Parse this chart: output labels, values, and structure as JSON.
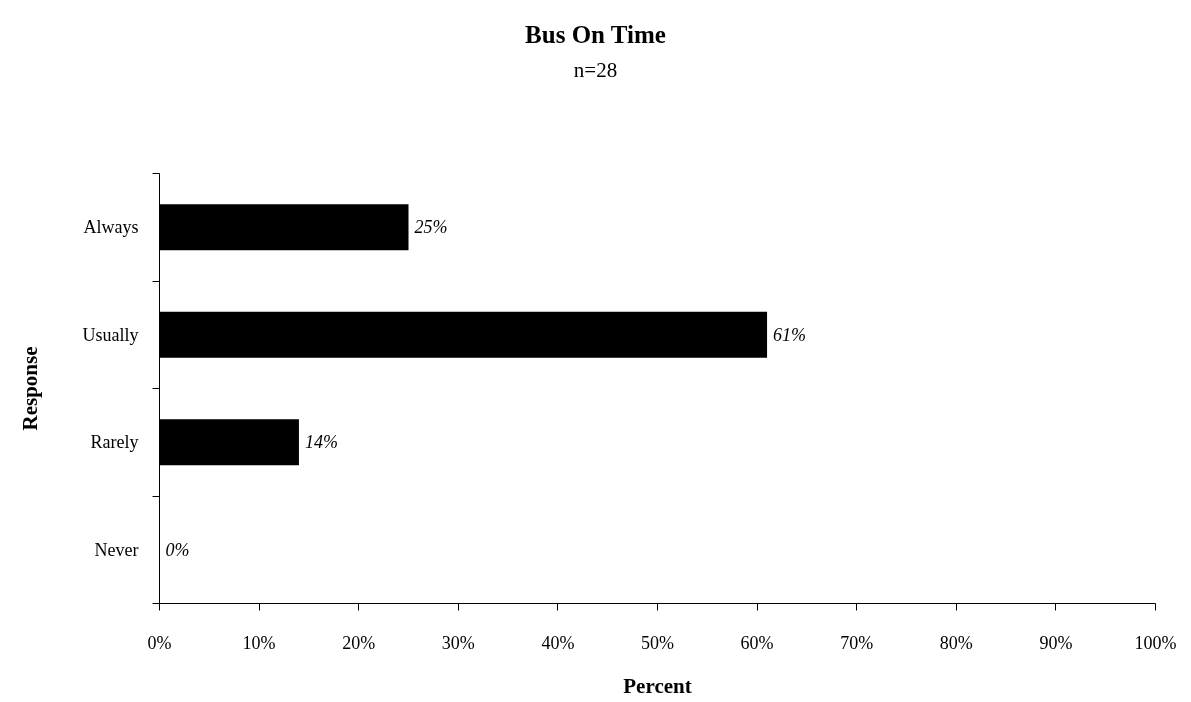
{
  "chart_data": {
    "type": "bar",
    "orientation": "horizontal",
    "title": "Bus On Time",
    "subtitle": "n=28",
    "xlabel": "Percent",
    "ylabel": "Response",
    "categories": [
      "Always",
      "Usually",
      "Rarely",
      "Never"
    ],
    "values": [
      25,
      61,
      14,
      0
    ],
    "color": "#000000",
    "value_labels": [
      "25%",
      "61%",
      "14%",
      "0%"
    ],
    "xlim": [
      0,
      100
    ],
    "xticks": [
      {
        "value": 0,
        "label": "0%"
      },
      {
        "value": 10,
        "label": "10%"
      },
      {
        "value": 20,
        "label": "20%"
      },
      {
        "value": 30,
        "label": "30%"
      },
      {
        "value": 40,
        "label": "40%"
      },
      {
        "value": 50,
        "label": "50%"
      },
      {
        "value": 60,
        "label": "60%"
      },
      {
        "value": 70,
        "label": "70%"
      },
      {
        "value": 80,
        "label": "80%"
      },
      {
        "value": 90,
        "label": "90%"
      },
      {
        "value": 100,
        "label": "100%"
      }
    ]
  }
}
